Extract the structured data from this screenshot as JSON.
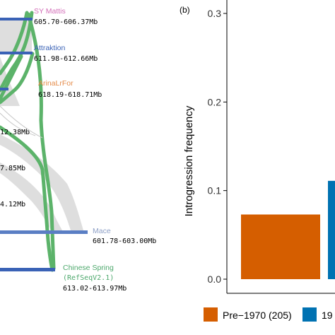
{
  "panel_a": {
    "genomes": [
      {
        "name": "SY Mattis",
        "range": "605.70-606.37Mb",
        "color": "#d36fb8"
      },
      {
        "name": "Attraktion",
        "range": "611.98-612.66Mb",
        "color": "#3a62b6"
      },
      {
        "name": "ArinaLrFor",
        "range": "618.19-618.71Mb",
        "color": "#e58c4a"
      },
      {
        "name": "",
        "range": "12.38Mb",
        "color": "#3a62b6"
      },
      {
        "name": "",
        "range": "7.85Mb",
        "color": "#3a62b6"
      },
      {
        "name": "",
        "range": "4.12Mb",
        "color": "#3a62b6"
      },
      {
        "name": "Mace",
        "range": "601.78-603.00Mb",
        "color": "#8d9fc6"
      },
      {
        "name": "Chinese Spring",
        "name2": "(RefSeqV2.1)",
        "range": "613.02-613.97Mb",
        "color": "#4da86c"
      }
    ],
    "link_colors": {
      "shared": "#d9d9d9",
      "highlight": "#5cb36a"
    }
  },
  "panel_b": {
    "panel_label": "(b)",
    "ylabel": "Introgression frequency",
    "ylim": [
      0,
      0.3
    ],
    "ticks": [
      "0.0",
      "0.1",
      "0.2",
      "0.3"
    ],
    "legend": [
      {
        "label": "Pre−1970 (205)",
        "color": "#d55e00"
      },
      {
        "label": "19",
        "color": "#0072b2"
      }
    ]
  },
  "chart_data": {
    "type": "bar",
    "categories": [
      "Pre−1970 (205)",
      "19"
    ],
    "values": [
      0.073,
      0.111
    ],
    "ylabel": "Introgression frequency",
    "ylim": [
      0,
      0.3
    ],
    "yticks": [
      0.0,
      0.1,
      0.2,
      0.3
    ],
    "colors": [
      "#d55e00",
      "#0072b2"
    ],
    "grid": false,
    "legend": "bottom"
  }
}
